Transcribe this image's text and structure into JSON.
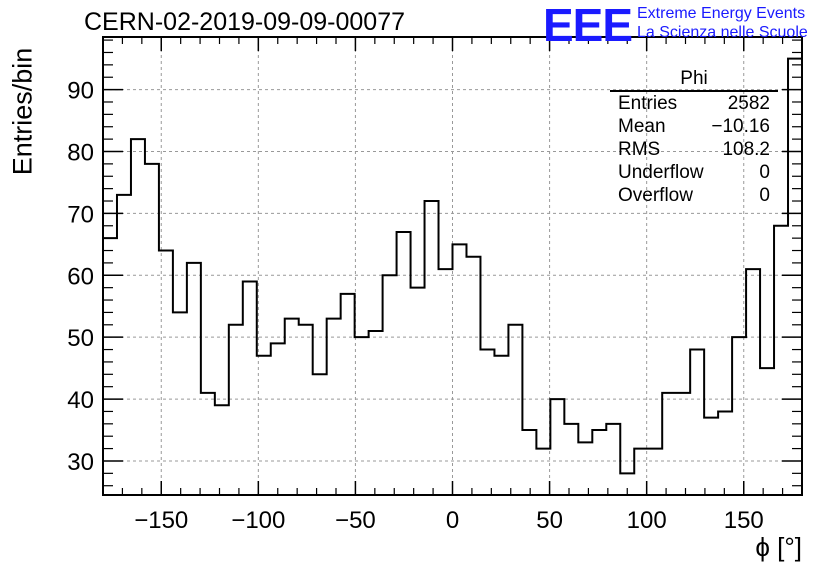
{
  "header": {
    "run_title": "CERN-02-2019-09-09-00077",
    "logo": "EEE",
    "logo_line1": "Extreme Energy Events",
    "logo_line2": "La Scienza nelle Scuole"
  },
  "stats_box": {
    "name": "Phi",
    "rows": [
      {
        "label": "Entries",
        "value": "2582"
      },
      {
        "label": "Mean",
        "value": "−10.16"
      },
      {
        "label": "RMS",
        "value": "108.2"
      },
      {
        "label": "Underflow",
        "value": "0"
      },
      {
        "label": "Overflow",
        "value": "0"
      }
    ]
  },
  "colors": {
    "line": "#000000",
    "grid": "#999999",
    "brand": "#1a1aff"
  },
  "chart_data": {
    "type": "histogram",
    "title": "CERN-02-2019-09-09-00077",
    "xlabel": "ϕ [°]",
    "ylabel": "Entries/bin",
    "xlim": [
      -180,
      180
    ],
    "ylim": [
      24.5,
      98.5
    ],
    "bin_width": 7.2,
    "grid": true,
    "x_ticks": [
      -150,
      -100,
      -50,
      0,
      50,
      100,
      150
    ],
    "x_tick_labels": [
      "−150",
      "−100",
      "−50",
      "0",
      "50",
      "100",
      "150"
    ],
    "y_ticks": [
      30,
      40,
      50,
      60,
      70,
      80,
      90
    ],
    "y_tick_labels": [
      "30",
      "40",
      "50",
      "60",
      "70",
      "80",
      "90"
    ],
    "values": [
      66,
      73,
      82,
      78,
      64,
      54,
      62,
      41,
      39,
      52,
      59,
      47,
      49,
      53,
      52,
      44,
      53,
      57,
      50,
      51,
      60,
      67,
      58,
      72,
      61,
      65,
      63,
      48,
      47,
      52,
      35,
      32,
      40,
      36,
      33,
      35,
      36,
      28,
      32,
      32,
      41,
      41,
      48,
      37,
      38,
      50,
      61,
      45,
      68,
      95
    ]
  }
}
